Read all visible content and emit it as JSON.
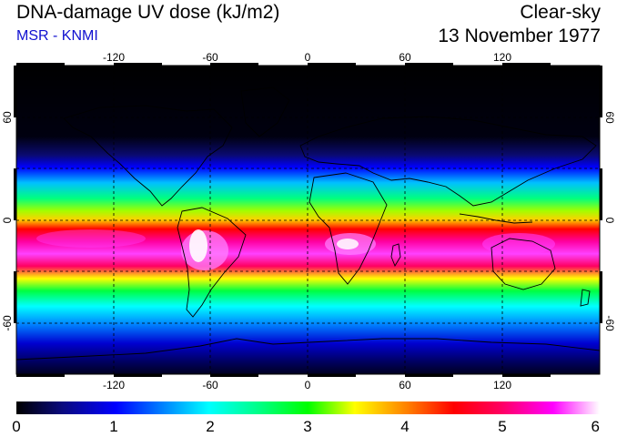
{
  "header": {
    "title": "DNA-damage UV dose (kJ/m2)",
    "subtitle": "MSR - KNMI",
    "sky_condition": "Clear-sky",
    "date": "13 November 1977"
  },
  "colors": {
    "subtitle": "#1010d0",
    "colormap": [
      "#000000",
      "#0a0a80",
      "#0000ff",
      "#00a0ff",
      "#00ffff",
      "#00ff80",
      "#00ff00",
      "#a0ff00",
      "#ffff00",
      "#ff8000",
      "#ff0000",
      "#ff0060",
      "#ff00ff",
      "#ff80ff",
      "#ffffff"
    ]
  },
  "map": {
    "longitude_ticks": [
      "-120",
      "-60",
      "0",
      "60",
      "120"
    ],
    "latitude_ticks": [
      "60",
      "0",
      "-60"
    ]
  },
  "colorbar": {
    "min": 0,
    "max": 6,
    "tick_labels": [
      "0",
      "1",
      "2",
      "3",
      "4",
      "5",
      "6"
    ]
  }
}
